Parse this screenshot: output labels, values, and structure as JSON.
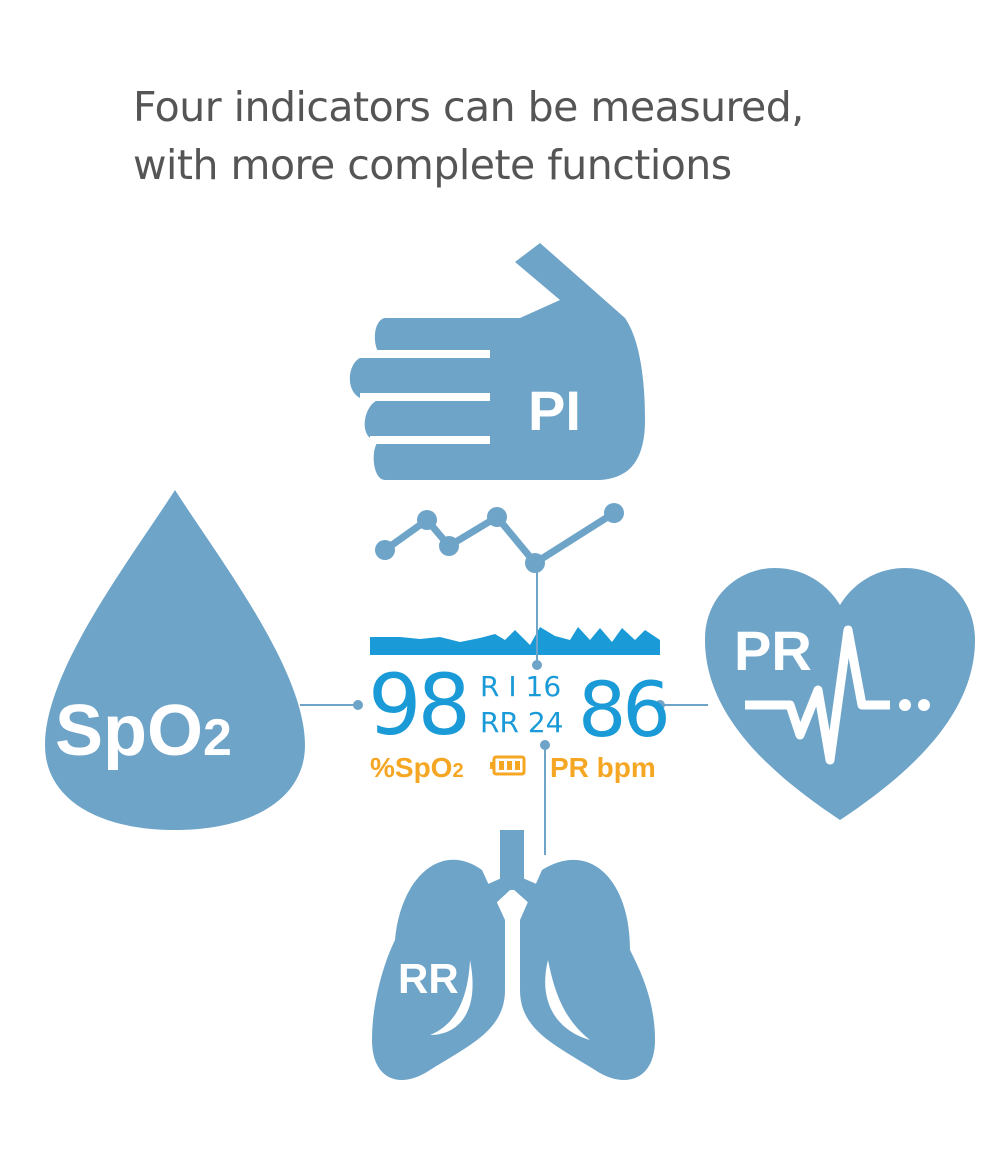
{
  "title": {
    "line1": "Four indicators can be measured,",
    "line2": "with more complete functions"
  },
  "colors": {
    "icon": "#6ea4c8",
    "display": "#1a9ad6",
    "label": "#f5a623",
    "title": "#555555"
  },
  "icons": {
    "pi": {
      "icon": "hand-icon",
      "label": "PI"
    },
    "spo2": {
      "icon": "drop-icon",
      "label": "SpO",
      "sub": "2"
    },
    "pr": {
      "icon": "heart-icon",
      "label": "PR"
    },
    "rr": {
      "icon": "lungs-icon",
      "label": "RR"
    }
  },
  "display": {
    "spo2_value": "98",
    "pi_label": "R I",
    "pi_value": "16",
    "rr_label": "RR",
    "rr_value": "24",
    "pr_value": "86",
    "spo2_unit": "%SpO",
    "spo2_unit_sub": "2",
    "battery_icon": "battery-icon",
    "pr_unit": "PR bpm"
  }
}
